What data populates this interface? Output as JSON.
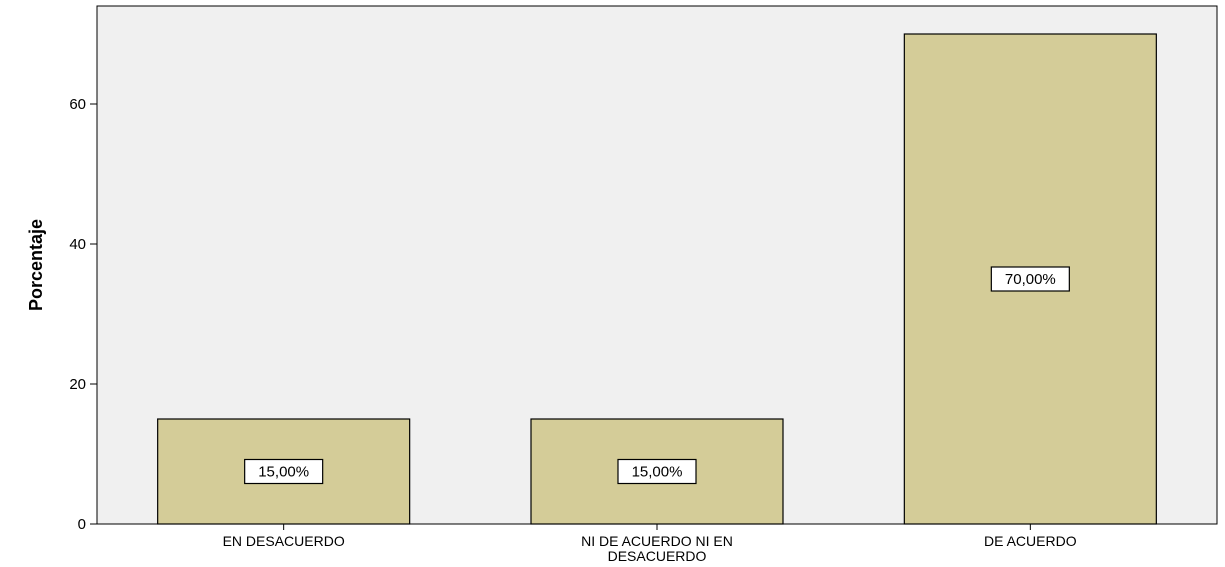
{
  "chart_data": {
    "type": "bar",
    "title": "",
    "xlabel": "",
    "ylabel": "Porcentaje",
    "categories": [
      [
        "EN DESACUERDO"
      ],
      [
        "NI DE ACUERDO NI EN",
        "DESACUERDO"
      ],
      [
        "DE ACUERDO"
      ]
    ],
    "values": [
      15,
      15,
      70
    ],
    "data_labels": [
      "15,00%",
      "15,00%",
      "70,00%"
    ],
    "ylim": [
      0,
      70
    ],
    "yticks": [
      0,
      20,
      40,
      60
    ],
    "grid": false,
    "legend": "none",
    "colors": {
      "bar_fill": "#d4cc98",
      "bar_stroke": "#000000",
      "plot_background": "#f0f0f0",
      "label_box_fill": "#ffffff"
    }
  }
}
